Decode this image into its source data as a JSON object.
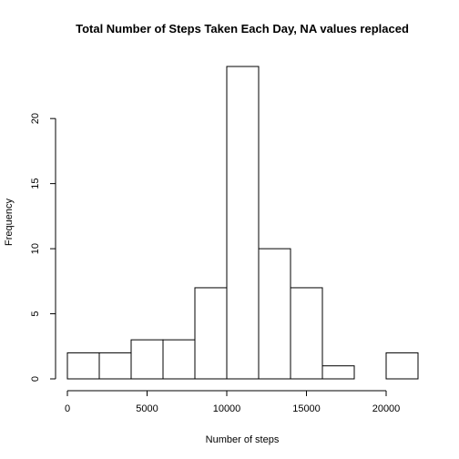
{
  "chart_data": {
    "type": "bar",
    "title": "Total Number of Steps Taken Each Day, NA values replaced",
    "xlabel": "Number of steps",
    "ylabel": "Frequency",
    "bins": [
      {
        "from": 0,
        "to": 2000,
        "count": 2
      },
      {
        "from": 2000,
        "to": 4000,
        "count": 2
      },
      {
        "from": 4000,
        "to": 6000,
        "count": 3
      },
      {
        "from": 6000,
        "to": 8000,
        "count": 3
      },
      {
        "from": 8000,
        "to": 10000,
        "count": 7
      },
      {
        "from": 10000,
        "to": 12000,
        "count": 24
      },
      {
        "from": 12000,
        "to": 14000,
        "count": 10
      },
      {
        "from": 14000,
        "to": 16000,
        "count": 7
      },
      {
        "from": 16000,
        "to": 18000,
        "count": 1
      },
      {
        "from": 18000,
        "to": 20000,
        "count": 0
      },
      {
        "from": 20000,
        "to": 22000,
        "count": 2
      }
    ],
    "xlim": [
      0,
      22000
    ],
    "ylim": [
      0,
      24
    ],
    "x_ticks": [
      0,
      5000,
      10000,
      15000,
      20000
    ],
    "y_ticks": [
      0,
      5,
      10,
      15,
      20
    ],
    "grid": false,
    "bar_fill": "#ffffff",
    "bar_stroke": "#000000"
  }
}
